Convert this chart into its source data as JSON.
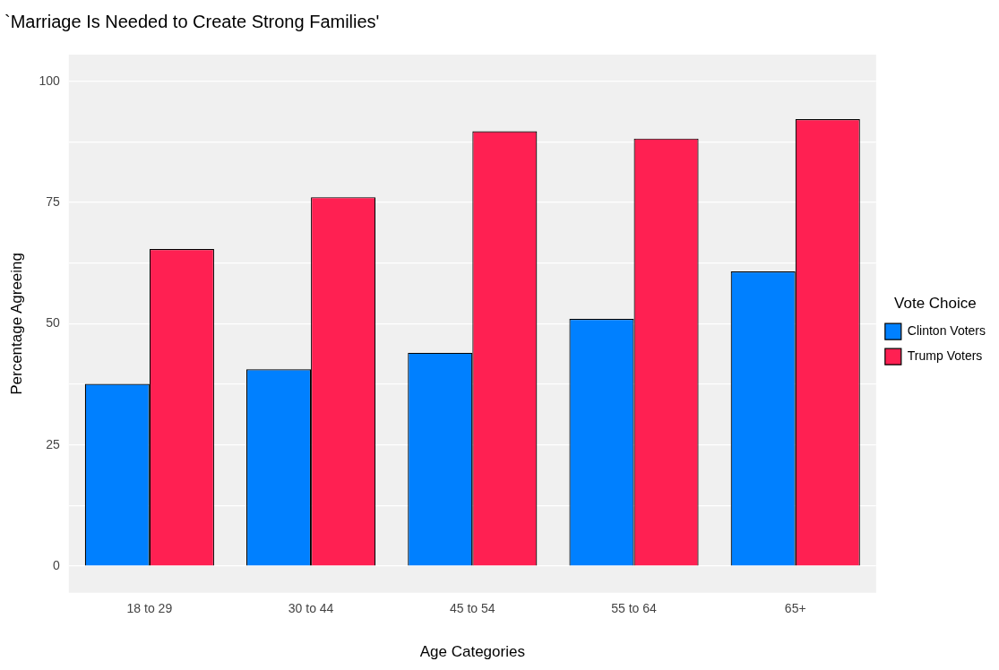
{
  "chart_data": {
    "type": "bar",
    "title": "`Marriage Is Needed to Create Strong Families'",
    "xlabel": "Age Categories",
    "ylabel": "Percentage Agreeing",
    "legend_title": "Vote Choice",
    "categories": [
      "18 to 29",
      "30 to 44",
      "45 to 54",
      "55 to 64",
      "65+"
    ],
    "series": [
      {
        "name": "Clinton Voters",
        "color": "#0080ff",
        "values": [
          37.6,
          40.6,
          44.0,
          51.0,
          60.8
        ]
      },
      {
        "name": "Trump Voters",
        "color": "#ff2052",
        "values": [
          65.4,
          76.1,
          89.7,
          88.2,
          92.2
        ]
      }
    ],
    "ylim": [
      -5.5,
      105.5
    ],
    "yticks": [
      0,
      {
        "value": 12.5,
        "label": null
      },
      25,
      {
        "value": 37.5,
        "label": null
      },
      50,
      {
        "value": 62.5,
        "label": null
      },
      75,
      {
        "value": 87.5,
        "label": null
      },
      100
    ],
    "grid": "y",
    "legend": "right"
  }
}
